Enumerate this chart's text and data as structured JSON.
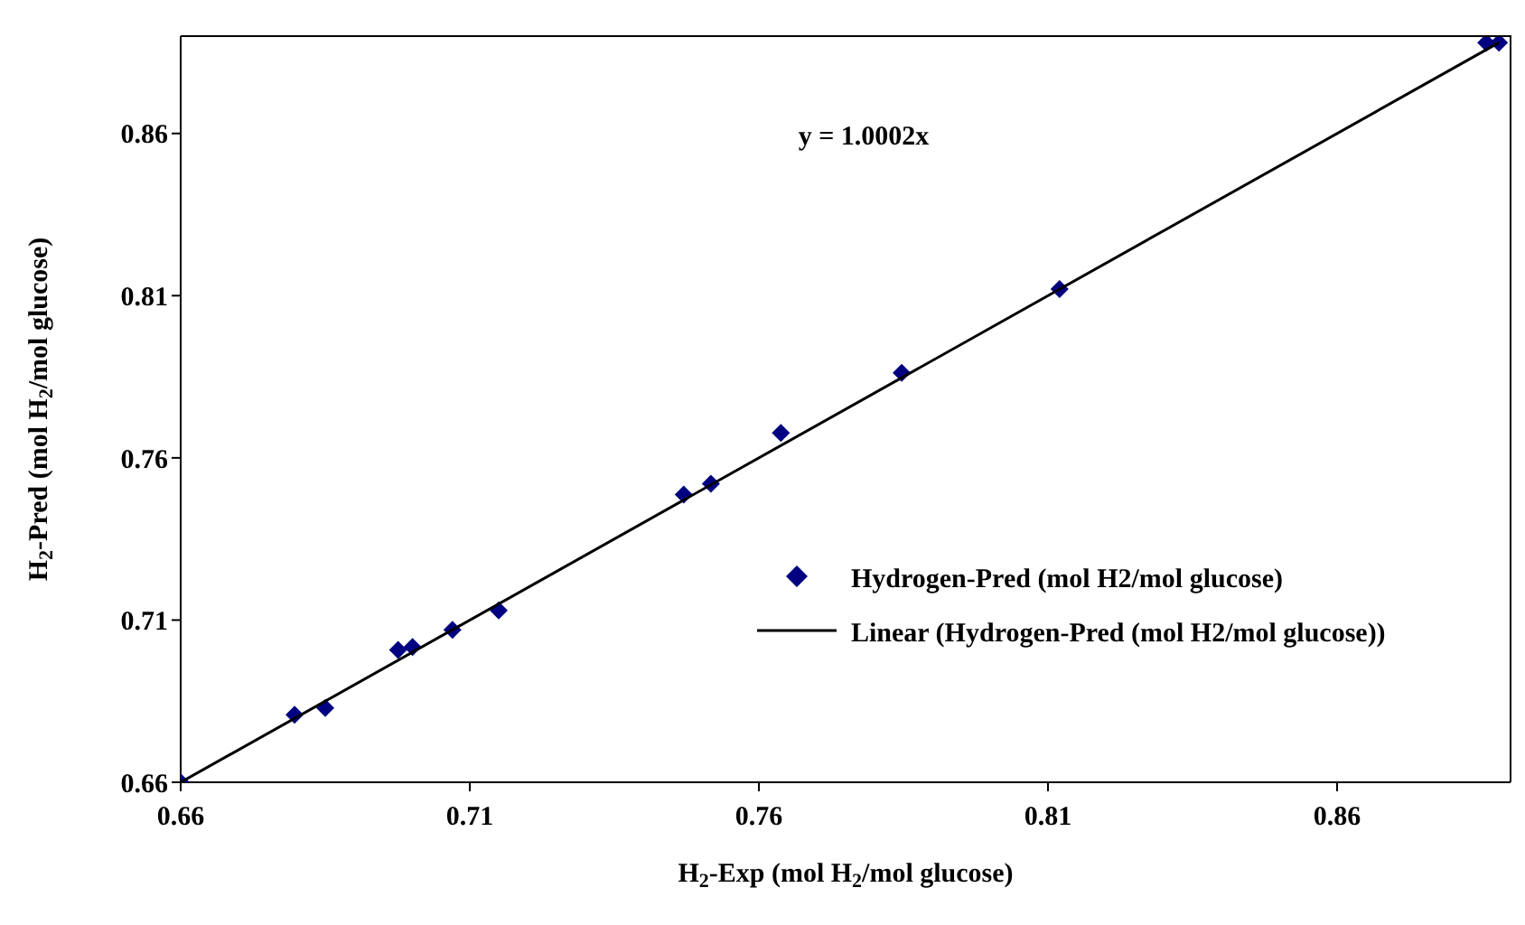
{
  "chart_data": {
    "type": "scatter",
    "xlabel": "H$_{2}$-Exp (mol H$_{2}$/mol glucose)",
    "ylabel": "H$_{2}$-Pred (mol H$_{2}$/mol glucose)",
    "annotations": [
      "y = 1.0002x"
    ],
    "xlim": [
      0.66,
      0.89
    ],
    "ylim": [
      0.66,
      0.89
    ],
    "xticks": [
      0.66,
      0.71,
      0.76,
      0.81,
      0.86
    ],
    "yticks": [
      0.66,
      0.71,
      0.76,
      0.81,
      0.86
    ],
    "legend": "right",
    "series": [
      {
        "name": "Hydrogen-Pred (mol H2/mol glucose)",
        "color": "#000080",
        "marker": "diamond",
        "x": [
          0.66,
          0.6797,
          0.685,
          0.6976,
          0.7001,
          0.707,
          0.715,
          0.747,
          0.7517,
          0.7638,
          0.7847,
          0.812,
          0.8858,
          0.888
        ],
        "values": [
          0.66,
          0.6808,
          0.6829,
          0.7008,
          0.7017,
          0.707,
          0.713,
          0.7487,
          0.752,
          0.7677,
          0.7862,
          0.812,
          0.888,
          0.888
        ]
      },
      {
        "name": "Linear (Hydrogen-Pred (mol H2/mol glucose))",
        "type": "line",
        "color": "#000000",
        "line_style": "solid",
        "x": [
          0.66,
          0.888
        ],
        "values": [
          0.66,
          0.888
        ]
      }
    ]
  }
}
